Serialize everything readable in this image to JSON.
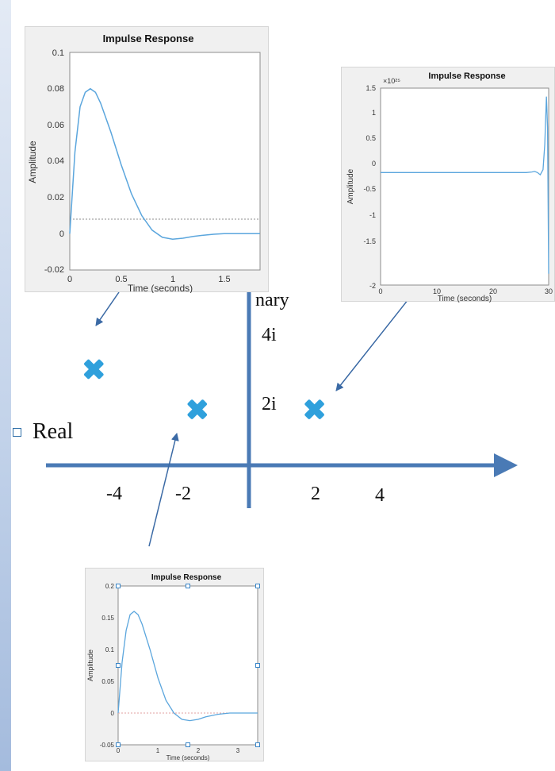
{
  "axis_labels": {
    "imaginary_partial": "nary",
    "real": "Real",
    "imag_ticks": [
      "4i",
      "2i"
    ],
    "real_ticks": [
      "-4",
      "-2",
      "2",
      "4"
    ]
  },
  "colors": {
    "axis": "#4a7ab5",
    "pole_marker": "#2fa0dc",
    "arrow": "#3b6aa5",
    "curve": "#5ba6dd",
    "slide_accent": "#a4bbdd"
  },
  "pole_icon": "x-cross-icon",
  "poles": [
    {
      "re": -4.5,
      "im": 2.75
    },
    {
      "re": -1.5,
      "im": 1.6
    },
    {
      "re": 1.9,
      "im": 1.6
    }
  ],
  "plots": {
    "top_left": {
      "title": "Impulse Response",
      "ylabel": "Amplitude",
      "xlabel": "Time (seconds)",
      "yticks": [
        "0.1",
        "0.08",
        "0.06",
        "0.04",
        "0.02",
        "0",
        "-0.02"
      ],
      "xticks": [
        "0",
        "0.5",
        "1",
        "1.5"
      ],
      "chart_data": {
        "type": "line",
        "xlim": [
          0,
          1.85
        ],
        "ylim": [
          -0.02,
          0.1
        ],
        "x": [
          0,
          0.05,
          0.1,
          0.15,
          0.2,
          0.25,
          0.3,
          0.4,
          0.5,
          0.6,
          0.7,
          0.8,
          0.9,
          1.0,
          1.1,
          1.2,
          1.3,
          1.4,
          1.5,
          1.6,
          1.7,
          1.85
        ],
        "y": [
          0,
          0.045,
          0.07,
          0.078,
          0.08,
          0.078,
          0.072,
          0.056,
          0.038,
          0.022,
          0.01,
          0.002,
          -0.002,
          -0.003,
          -0.0025,
          -0.0015,
          -0.0008,
          -0.0003,
          0,
          0,
          0,
          0
        ]
      }
    },
    "top_right": {
      "title": "Impulse Response",
      "exponent": "×10²⁵",
      "ylabel": "Amplitude",
      "xlabel": "Time (seconds)",
      "yticks": [
        "1.5",
        "1",
        "0.5",
        "0",
        "-0.5",
        "-1",
        "-1.5",
        "-2"
      ],
      "xticks": [
        "0",
        "10",
        "20",
        "30"
      ],
      "chart_data": {
        "type": "line",
        "xlim": [
          0,
          30
        ],
        "ylim": [
          -2,
          1.5
        ],
        "x": [
          0,
          20,
          25,
          26,
          27,
          27.5,
          28,
          28.5,
          29,
          29.3,
          29.6,
          29.8,
          30
        ],
        "y": [
          0,
          0,
          0,
          0,
          0.01,
          0.02,
          0.0,
          -0.04,
          0.05,
          0.5,
          1.35,
          0.8,
          -1.8
        ]
      }
    },
    "bottom": {
      "title": "Impulse Response",
      "ylabel": "Amplitude",
      "xlabel": "Time (seconds)",
      "yticks": [
        "0.2",
        "0.15",
        "0.1",
        "0.05",
        "0",
        "-0.05"
      ],
      "xticks": [
        "0",
        "1",
        "2",
        "3"
      ],
      "chart_data": {
        "type": "line",
        "xlim": [
          0,
          3.5
        ],
        "ylim": [
          -0.05,
          0.2
        ],
        "x": [
          0,
          0.1,
          0.2,
          0.3,
          0.4,
          0.5,
          0.6,
          0.8,
          1.0,
          1.2,
          1.4,
          1.6,
          1.8,
          2.0,
          2.2,
          2.5,
          2.8,
          3.1,
          3.5
        ],
        "y": [
          0,
          0.08,
          0.13,
          0.155,
          0.16,
          0.155,
          0.14,
          0.1,
          0.055,
          0.02,
          0.0,
          -0.01,
          -0.012,
          -0.01,
          -0.006,
          -0.002,
          0,
          0,
          0
        ]
      }
    }
  }
}
